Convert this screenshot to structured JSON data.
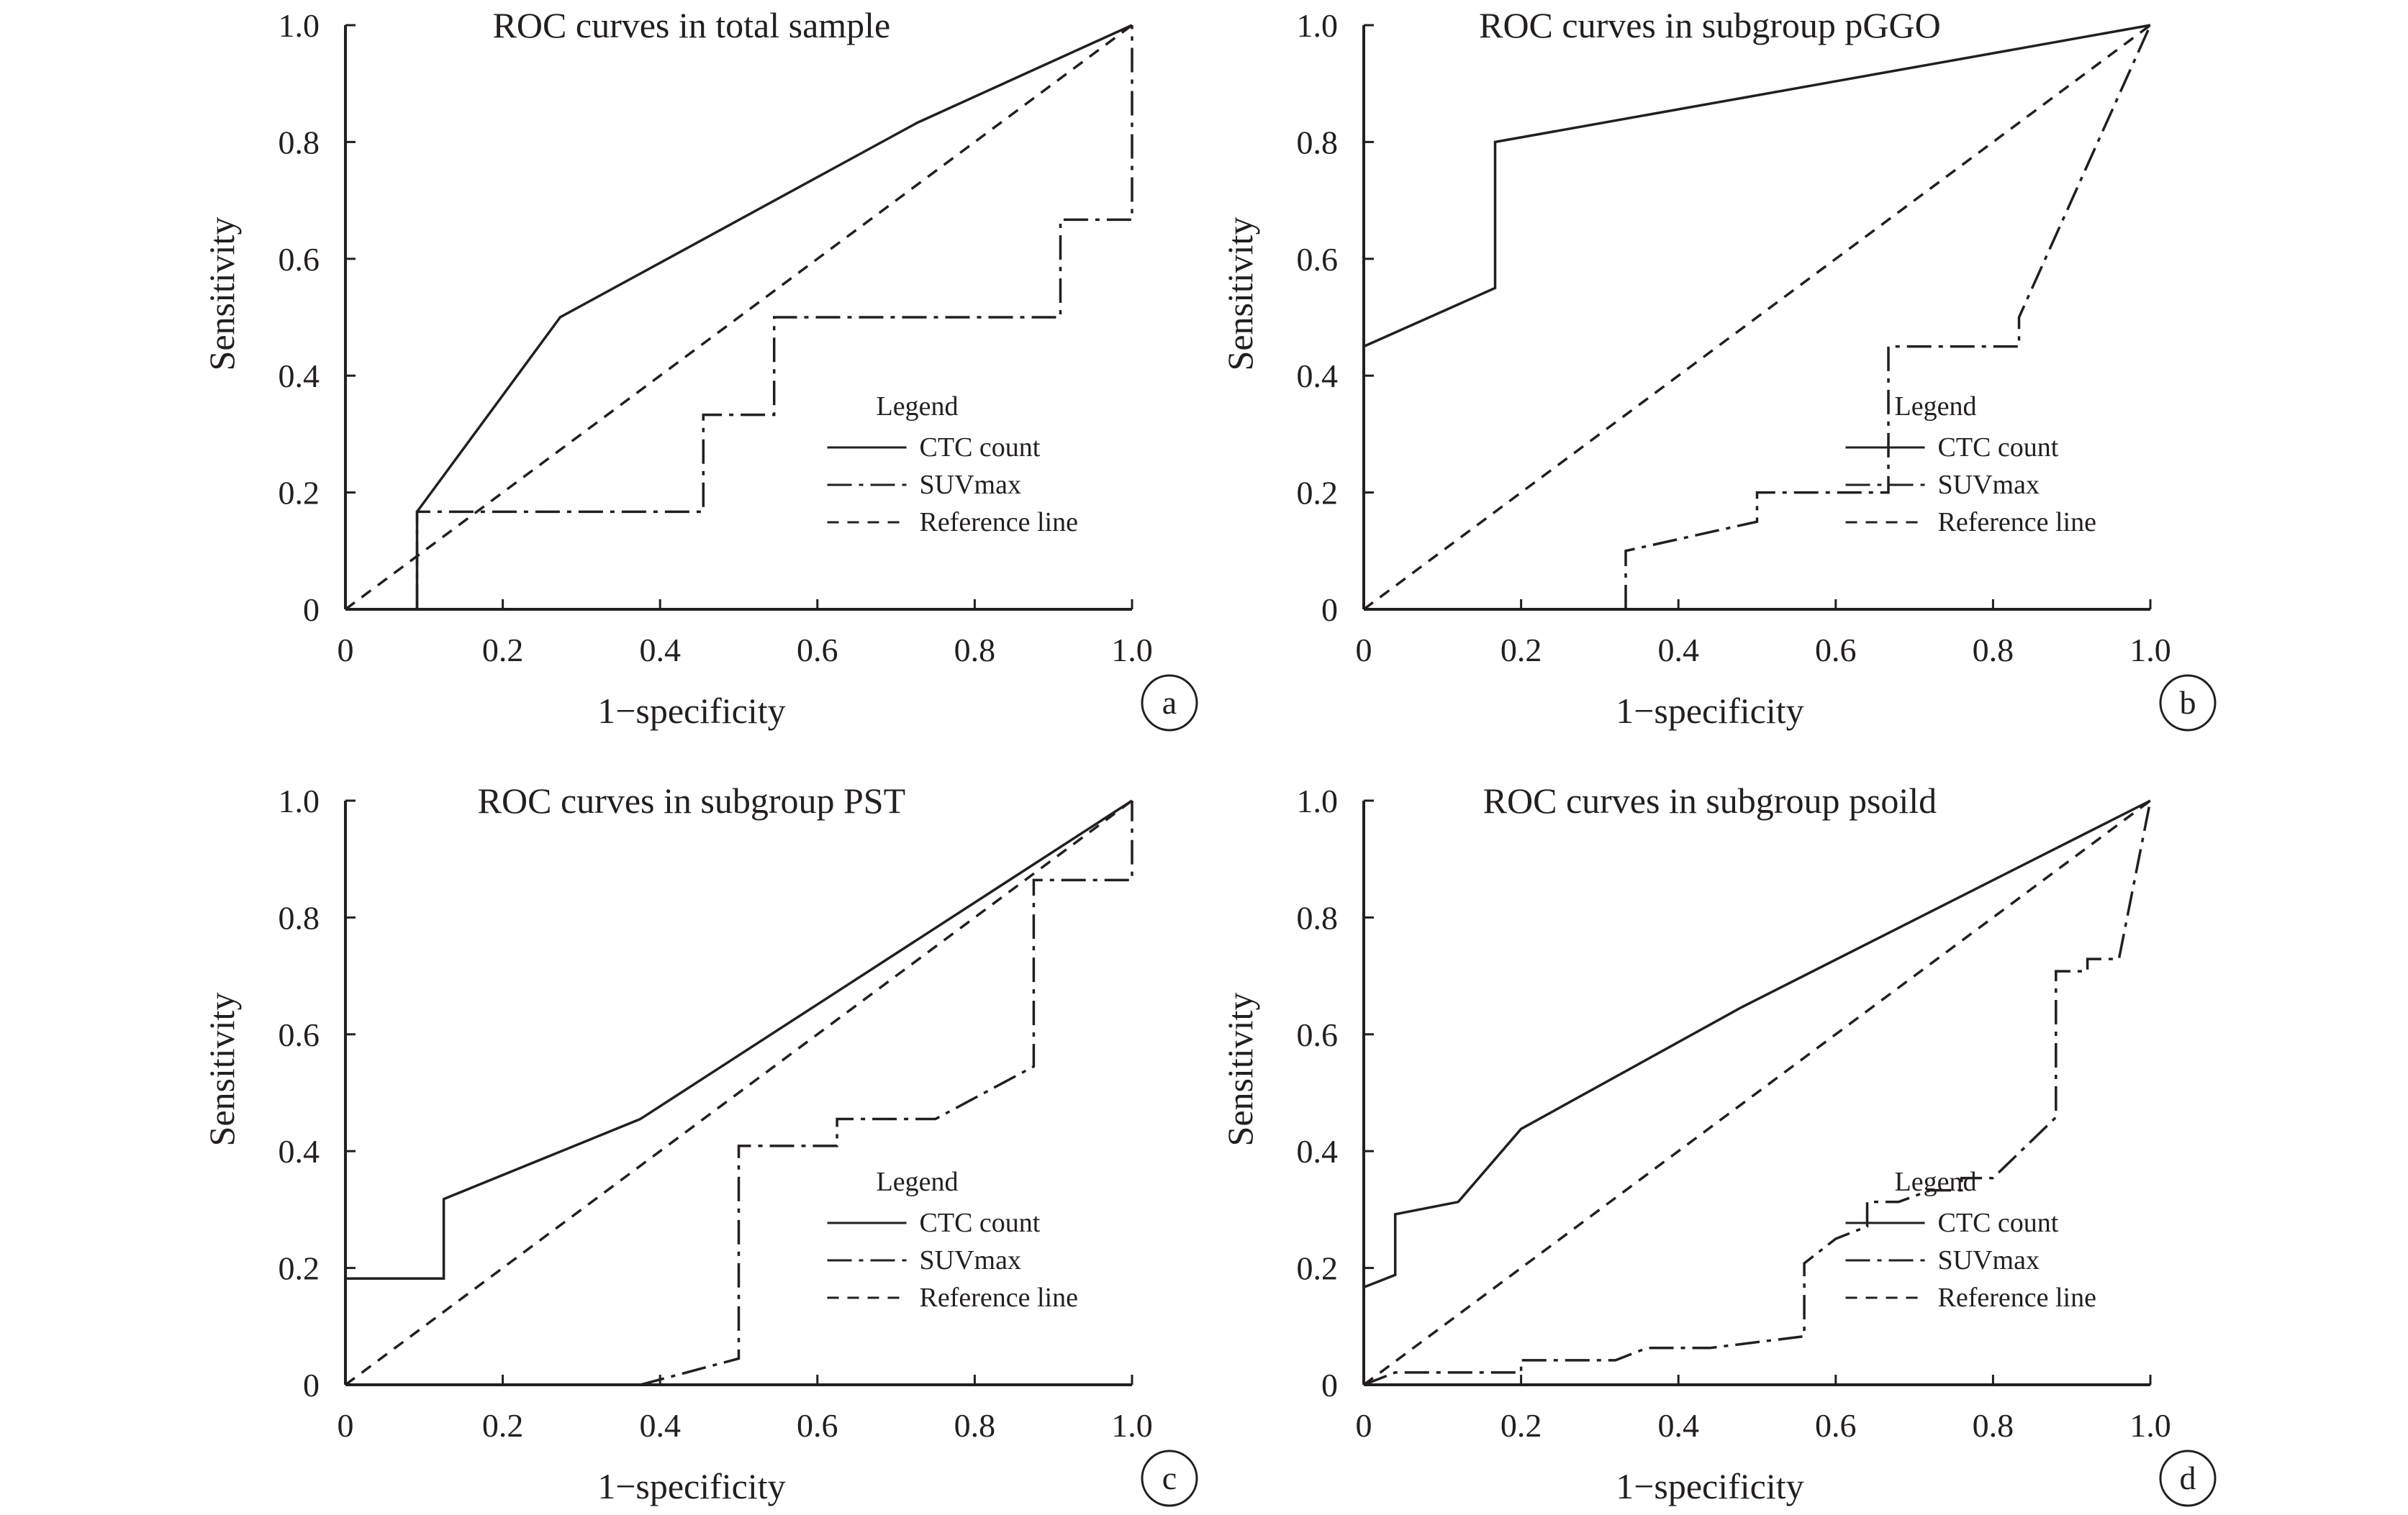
{
  "chart_data": [
    {
      "type": "line",
      "title": "ROC curves in total sample",
      "xlabel": "1−specificity",
      "ylabel": "Sensitivity",
      "xlim": [
        0,
        1
      ],
      "ylim": [
        0,
        1
      ],
      "xticks": [
        "0",
        "0.2",
        "0.4",
        "0.6",
        "0.8",
        "1.0"
      ],
      "yticks": [
        "0",
        "0.2",
        "0.4",
        "0.6",
        "0.8",
        "1.0"
      ],
      "grid": false,
      "legend": {
        "title": "Legend",
        "placement": "bottom-right"
      },
      "panel_label": "a",
      "series": [
        {
          "name": "CTC count",
          "style": "solid",
          "points": [
            [
              0.091,
              0
            ],
            [
              0.091,
              0.167
            ],
            [
              0.273,
              0.5
            ],
            [
              0.727,
              0.833
            ],
            [
              1,
              1
            ]
          ]
        },
        {
          "name": "SUVmax",
          "style": "dashdot",
          "points": [
            [
              0.091,
              0
            ],
            [
              0.091,
              0.167
            ],
            [
              0.455,
              0.167
            ],
            [
              0.455,
              0.333
            ],
            [
              0.545,
              0.333
            ],
            [
              0.545,
              0.5
            ],
            [
              0.909,
              0.5
            ],
            [
              0.909,
              0.667
            ],
            [
              1,
              0.667
            ],
            [
              1,
              1
            ]
          ]
        },
        {
          "name": "Reference line",
          "style": "dashed",
          "points": [
            [
              0,
              0
            ],
            [
              1,
              1
            ]
          ]
        }
      ]
    },
    {
      "type": "line",
      "title": "ROC curves in subgroup pGGO",
      "xlabel": "1−specificity",
      "ylabel": "Sensitivity",
      "xlim": [
        0,
        1
      ],
      "ylim": [
        0,
        1
      ],
      "xticks": [
        "0",
        "0.2",
        "0.4",
        "0.6",
        "0.8",
        "1.0"
      ],
      "yticks": [
        "0",
        "0.2",
        "0.4",
        "0.6",
        "0.8",
        "1.0"
      ],
      "grid": false,
      "legend": {
        "title": "Legend",
        "placement": "bottom-right"
      },
      "panel_label": "b",
      "series": [
        {
          "name": "CTC count",
          "style": "solid",
          "points": [
            [
              0,
              0.45
            ],
            [
              0.167,
              0.55
            ],
            [
              0.167,
              0.8
            ],
            [
              1,
              1
            ]
          ]
        },
        {
          "name": "SUVmax",
          "style": "dashdot",
          "points": [
            [
              0.333,
              0
            ],
            [
              0.333,
              0.1
            ],
            [
              0.5,
              0.15
            ],
            [
              0.5,
              0.2
            ],
            [
              0.667,
              0.2
            ],
            [
              0.667,
              0.45
            ],
            [
              0.833,
              0.45
            ],
            [
              0.833,
              0.5
            ],
            [
              1,
              1
            ]
          ]
        },
        {
          "name": "Reference line",
          "style": "dashed",
          "points": [
            [
              0,
              0
            ],
            [
              1,
              1
            ]
          ]
        }
      ]
    },
    {
      "type": "line",
      "title": "ROC curves in subgroup PST",
      "xlabel": "1−specificity",
      "ylabel": "Sensitivity",
      "xlim": [
        0,
        1
      ],
      "ylim": [
        0,
        1
      ],
      "xticks": [
        "0",
        "0.2",
        "0.4",
        "0.6",
        "0.8",
        "1.0"
      ],
      "yticks": [
        "0",
        "0.2",
        "0.4",
        "0.6",
        "0.8",
        "1.0"
      ],
      "grid": false,
      "legend": {
        "title": "Legend",
        "placement": "bottom-right"
      },
      "panel_label": "c",
      "series": [
        {
          "name": "CTC count",
          "style": "solid",
          "points": [
            [
              0,
              0.182
            ],
            [
              0.125,
              0.182
            ],
            [
              0.125,
              0.318
            ],
            [
              0.375,
              0.455
            ],
            [
              1,
              1
            ]
          ]
        },
        {
          "name": "SUVmax",
          "style": "dashdot",
          "points": [
            [
              0.375,
              0
            ],
            [
              0.5,
              0.045
            ],
            [
              0.5,
              0.409
            ],
            [
              0.625,
              0.409
            ],
            [
              0.625,
              0.455
            ],
            [
              0.75,
              0.455
            ],
            [
              0.875,
              0.545
            ],
            [
              0.875,
              0.864
            ],
            [
              1,
              0.864
            ],
            [
              1,
              1
            ]
          ]
        },
        {
          "name": "Reference line",
          "style": "dashed",
          "points": [
            [
              0,
              0
            ],
            [
              1,
              1
            ]
          ]
        }
      ]
    },
    {
      "type": "line",
      "title": "ROC curves in subgroup psoild",
      "xlabel": "1−specificity",
      "ylabel": "Sensitivity",
      "xlim": [
        0,
        1
      ],
      "ylim": [
        0,
        1
      ],
      "xticks": [
        "0",
        "0.2",
        "0.4",
        "0.6",
        "0.8",
        "1.0"
      ],
      "yticks": [
        "0",
        "0.2",
        "0.4",
        "0.6",
        "0.8",
        "1.0"
      ],
      "grid": false,
      "legend": {
        "title": "Legend",
        "placement": "bottom-right"
      },
      "panel_label": "d",
      "series": [
        {
          "name": "CTC count",
          "style": "solid",
          "points": [
            [
              0,
              0.167
            ],
            [
              0.04,
              0.188
            ],
            [
              0.04,
              0.292
            ],
            [
              0.12,
              0.313
            ],
            [
              0.2,
              0.438
            ],
            [
              0.48,
              0.646
            ],
            [
              1,
              1
            ]
          ]
        },
        {
          "name": "SUVmax",
          "style": "dashdot",
          "points": [
            [
              0,
              0
            ],
            [
              0.04,
              0.021
            ],
            [
              0.2,
              0.021
            ],
            [
              0.2,
              0.042
            ],
            [
              0.32,
              0.042
            ],
            [
              0.36,
              0.063
            ],
            [
              0.44,
              0.063
            ],
            [
              0.56,
              0.083
            ],
            [
              0.56,
              0.208
            ],
            [
              0.6,
              0.25
            ],
            [
              0.64,
              0.271
            ],
            [
              0.64,
              0.313
            ],
            [
              0.68,
              0.313
            ],
            [
              0.72,
              0.333
            ],
            [
              0.76,
              0.333
            ],
            [
              0.76,
              0.354
            ],
            [
              0.8,
              0.354
            ],
            [
              0.88,
              0.458
            ],
            [
              0.88,
              0.708
            ],
            [
              0.92,
              0.708
            ],
            [
              0.92,
              0.729
            ],
            [
              0.96,
              0.729
            ],
            [
              1,
              1
            ]
          ]
        },
        {
          "name": "Reference line",
          "style": "dashed",
          "points": [
            [
              0,
              0
            ],
            [
              1,
              1
            ]
          ]
        }
      ]
    }
  ]
}
